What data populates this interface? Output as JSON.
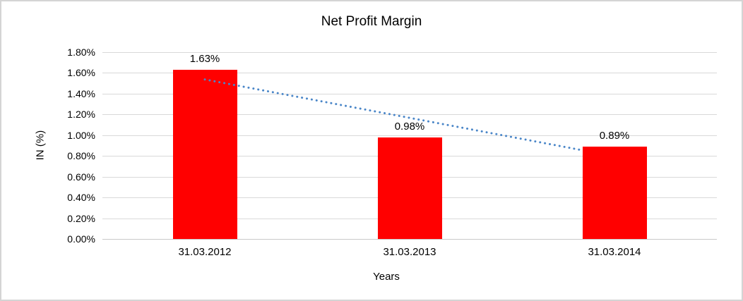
{
  "chart_data": {
    "type": "bar",
    "title": "Net Profit Margin",
    "xlabel": "Years",
    "ylabel": "IN (%)",
    "categories": [
      "31.03.2012",
      "31.03.2013",
      "31.03.2014"
    ],
    "values": [
      1.63,
      0.98,
      0.89
    ],
    "data_labels": [
      "1.63%",
      "0.98%",
      "0.89%"
    ],
    "ytick_labels": [
      "0.00%",
      "0.20%",
      "0.40%",
      "0.60%",
      "0.80%",
      "1.00%",
      "1.20%",
      "1.40%",
      "1.60%",
      "1.80%"
    ],
    "ytick_values": [
      0.0,
      0.2,
      0.4,
      0.6,
      0.8,
      1.0,
      1.2,
      1.4,
      1.6,
      1.8
    ],
    "ylim": [
      0,
      1.8
    ],
    "grid": true,
    "legend": false,
    "bar_color": "#ff0000",
    "gridline_color": "#d9d9d9",
    "trendline": {
      "type": "linear",
      "style": "dotted",
      "color": "#4a86c8",
      "start_value": 1.537,
      "end_value": 0.797
    }
  }
}
